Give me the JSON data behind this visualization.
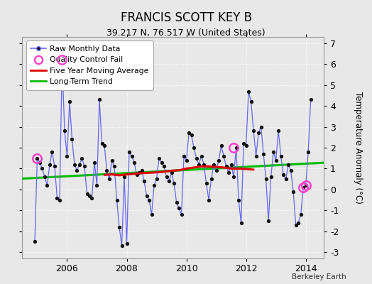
{
  "title": "FRANCIS SCOTT KEY B",
  "subtitle": "39.217 N, 76.517 W (United States)",
  "ylabel": "Temperature Anomaly (°C)",
  "attribution": "Berkeley Earth",
  "xlim": [
    2004.5,
    2014.6
  ],
  "ylim": [
    -3.3,
    7.3
  ],
  "yticks": [
    -3,
    -2,
    -1,
    0,
    1,
    2,
    3,
    4,
    5,
    6,
    7
  ],
  "xticks": [
    2006,
    2008,
    2010,
    2012,
    2014
  ],
  "bg_color": "#e8e8e8",
  "raw_x": [
    2004.917,
    2005.0,
    2005.083,
    2005.167,
    2005.25,
    2005.333,
    2005.417,
    2005.5,
    2005.583,
    2005.667,
    2005.75,
    2005.833,
    2005.917,
    2006.0,
    2006.083,
    2006.167,
    2006.25,
    2006.333,
    2006.417,
    2006.5,
    2006.583,
    2006.667,
    2006.75,
    2006.833,
    2006.917,
    2007.0,
    2007.083,
    2007.167,
    2007.25,
    2007.333,
    2007.417,
    2007.5,
    2007.583,
    2007.667,
    2007.75,
    2007.833,
    2007.917,
    2008.0,
    2008.083,
    2008.167,
    2008.25,
    2008.333,
    2008.417,
    2008.5,
    2008.583,
    2008.667,
    2008.75,
    2008.833,
    2008.917,
    2009.0,
    2009.083,
    2009.167,
    2009.25,
    2009.333,
    2009.417,
    2009.5,
    2009.583,
    2009.667,
    2009.75,
    2009.833,
    2009.917,
    2010.0,
    2010.083,
    2010.167,
    2010.25,
    2010.333,
    2010.417,
    2010.5,
    2010.583,
    2010.667,
    2010.75,
    2010.833,
    2010.917,
    2011.0,
    2011.083,
    2011.167,
    2011.25,
    2011.333,
    2011.417,
    2011.5,
    2011.583,
    2011.667,
    2011.75,
    2011.833,
    2011.917,
    2012.0,
    2012.083,
    2012.167,
    2012.25,
    2012.333,
    2012.417,
    2012.5,
    2012.583,
    2012.667,
    2012.75,
    2012.833,
    2012.917,
    2013.0,
    2013.083,
    2013.167,
    2013.25,
    2013.333,
    2013.417,
    2013.5,
    2013.583,
    2013.667,
    2013.75,
    2013.833,
    2013.917,
    2014.0,
    2014.083,
    2014.167
  ],
  "raw_y": [
    -2.5,
    1.5,
    1.3,
    1.0,
    0.6,
    0.2,
    1.2,
    1.8,
    1.1,
    -0.4,
    -0.5,
    6.2,
    2.8,
    1.6,
    4.2,
    2.4,
    1.2,
    0.9,
    1.2,
    1.5,
    1.1,
    -0.2,
    -0.3,
    -0.4,
    1.3,
    0.2,
    4.3,
    2.2,
    2.1,
    0.9,
    0.5,
    1.4,
    1.1,
    -0.5,
    -1.8,
    -2.7,
    0.6,
    -2.6,
    1.8,
    1.6,
    1.3,
    0.7,
    0.8,
    0.9,
    0.4,
    -0.3,
    -0.5,
    -1.2,
    0.2,
    0.5,
    1.5,
    1.3,
    1.1,
    0.6,
    0.4,
    0.8,
    0.3,
    -0.6,
    -0.9,
    -1.2,
    1.6,
    1.4,
    2.7,
    2.6,
    2.0,
    1.5,
    1.2,
    1.6,
    1.2,
    0.3,
    -0.5,
    0.5,
    1.2,
    0.9,
    1.4,
    2.1,
    1.6,
    1.1,
    0.8,
    1.2,
    0.6,
    2.0,
    -0.5,
    -1.6,
    2.2,
    2.1,
    4.7,
    4.2,
    2.8,
    1.6,
    2.7,
    3.0,
    1.7,
    0.5,
    -1.5,
    0.6,
    1.8,
    1.4,
    2.8,
    1.6,
    0.7,
    0.5,
    1.2,
    0.9,
    -0.1,
    -1.7,
    -1.6,
    -1.2,
    0.1,
    0.2,
    1.8,
    4.3
  ],
  "qc_fail_x": [
    2005.0,
    2005.833,
    2011.583,
    2013.917,
    2014.0
  ],
  "qc_fail_y": [
    1.5,
    6.2,
    2.0,
    0.1,
    0.2
  ],
  "moving_avg_x": [
    2007.25,
    2007.5,
    2007.75,
    2008.0,
    2008.25,
    2008.5,
    2008.75,
    2009.0,
    2009.25,
    2009.5,
    2009.75,
    2010.0,
    2010.25,
    2010.5,
    2010.75,
    2011.0,
    2011.25,
    2011.5,
    2011.75,
    2012.0,
    2012.25
  ],
  "moving_avg_y": [
    0.7,
    0.72,
    0.68,
    0.72,
    0.75,
    0.78,
    0.8,
    0.82,
    0.85,
    0.9,
    0.92,
    1.0,
    1.05,
    1.1,
    1.1,
    1.08,
    1.05,
    1.0,
    1.0,
    0.98,
    0.95
  ],
  "trend_x": [
    2004.5,
    2014.6
  ],
  "trend_y": [
    0.52,
    1.28
  ],
  "raw_color": "#4444dd",
  "raw_line_color": "#6666ee",
  "raw_marker_color": "#111111",
  "qc_color": "#ff44cc",
  "moving_avg_color": "#dd0000",
  "trend_color": "#00bb00",
  "legend_bg": "#ffffff",
  "grid_color": "#ffffff"
}
